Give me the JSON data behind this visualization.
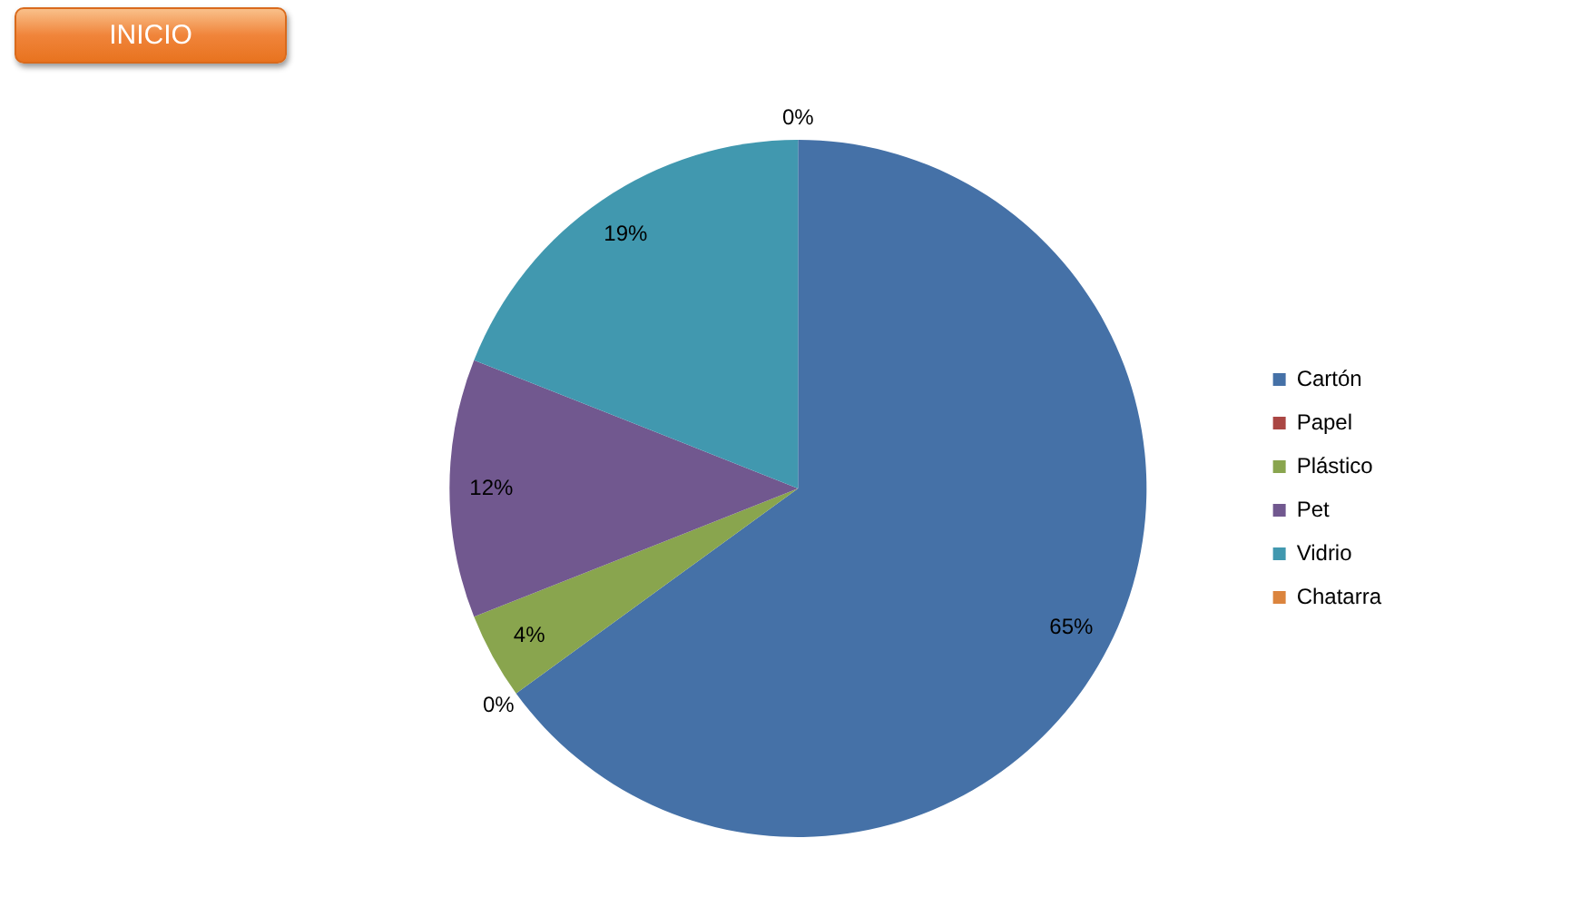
{
  "chart_data": {
    "type": "pie",
    "categories": [
      "Cartón",
      "Papel",
      "Plástico",
      "Pet",
      "Vidrio",
      "Chatarra"
    ],
    "values": [
      65,
      0,
      4,
      12,
      19,
      0
    ],
    "value_labels": [
      "65%",
      "0%",
      "4%",
      "12%",
      "19%",
      "0%"
    ],
    "colors": [
      "#4571a7",
      "#aa4643",
      "#89a54e",
      "#71588f",
      "#4198af",
      "#db843d"
    ],
    "legend": "right",
    "annotations": [
      "INICIO"
    ]
  }
}
